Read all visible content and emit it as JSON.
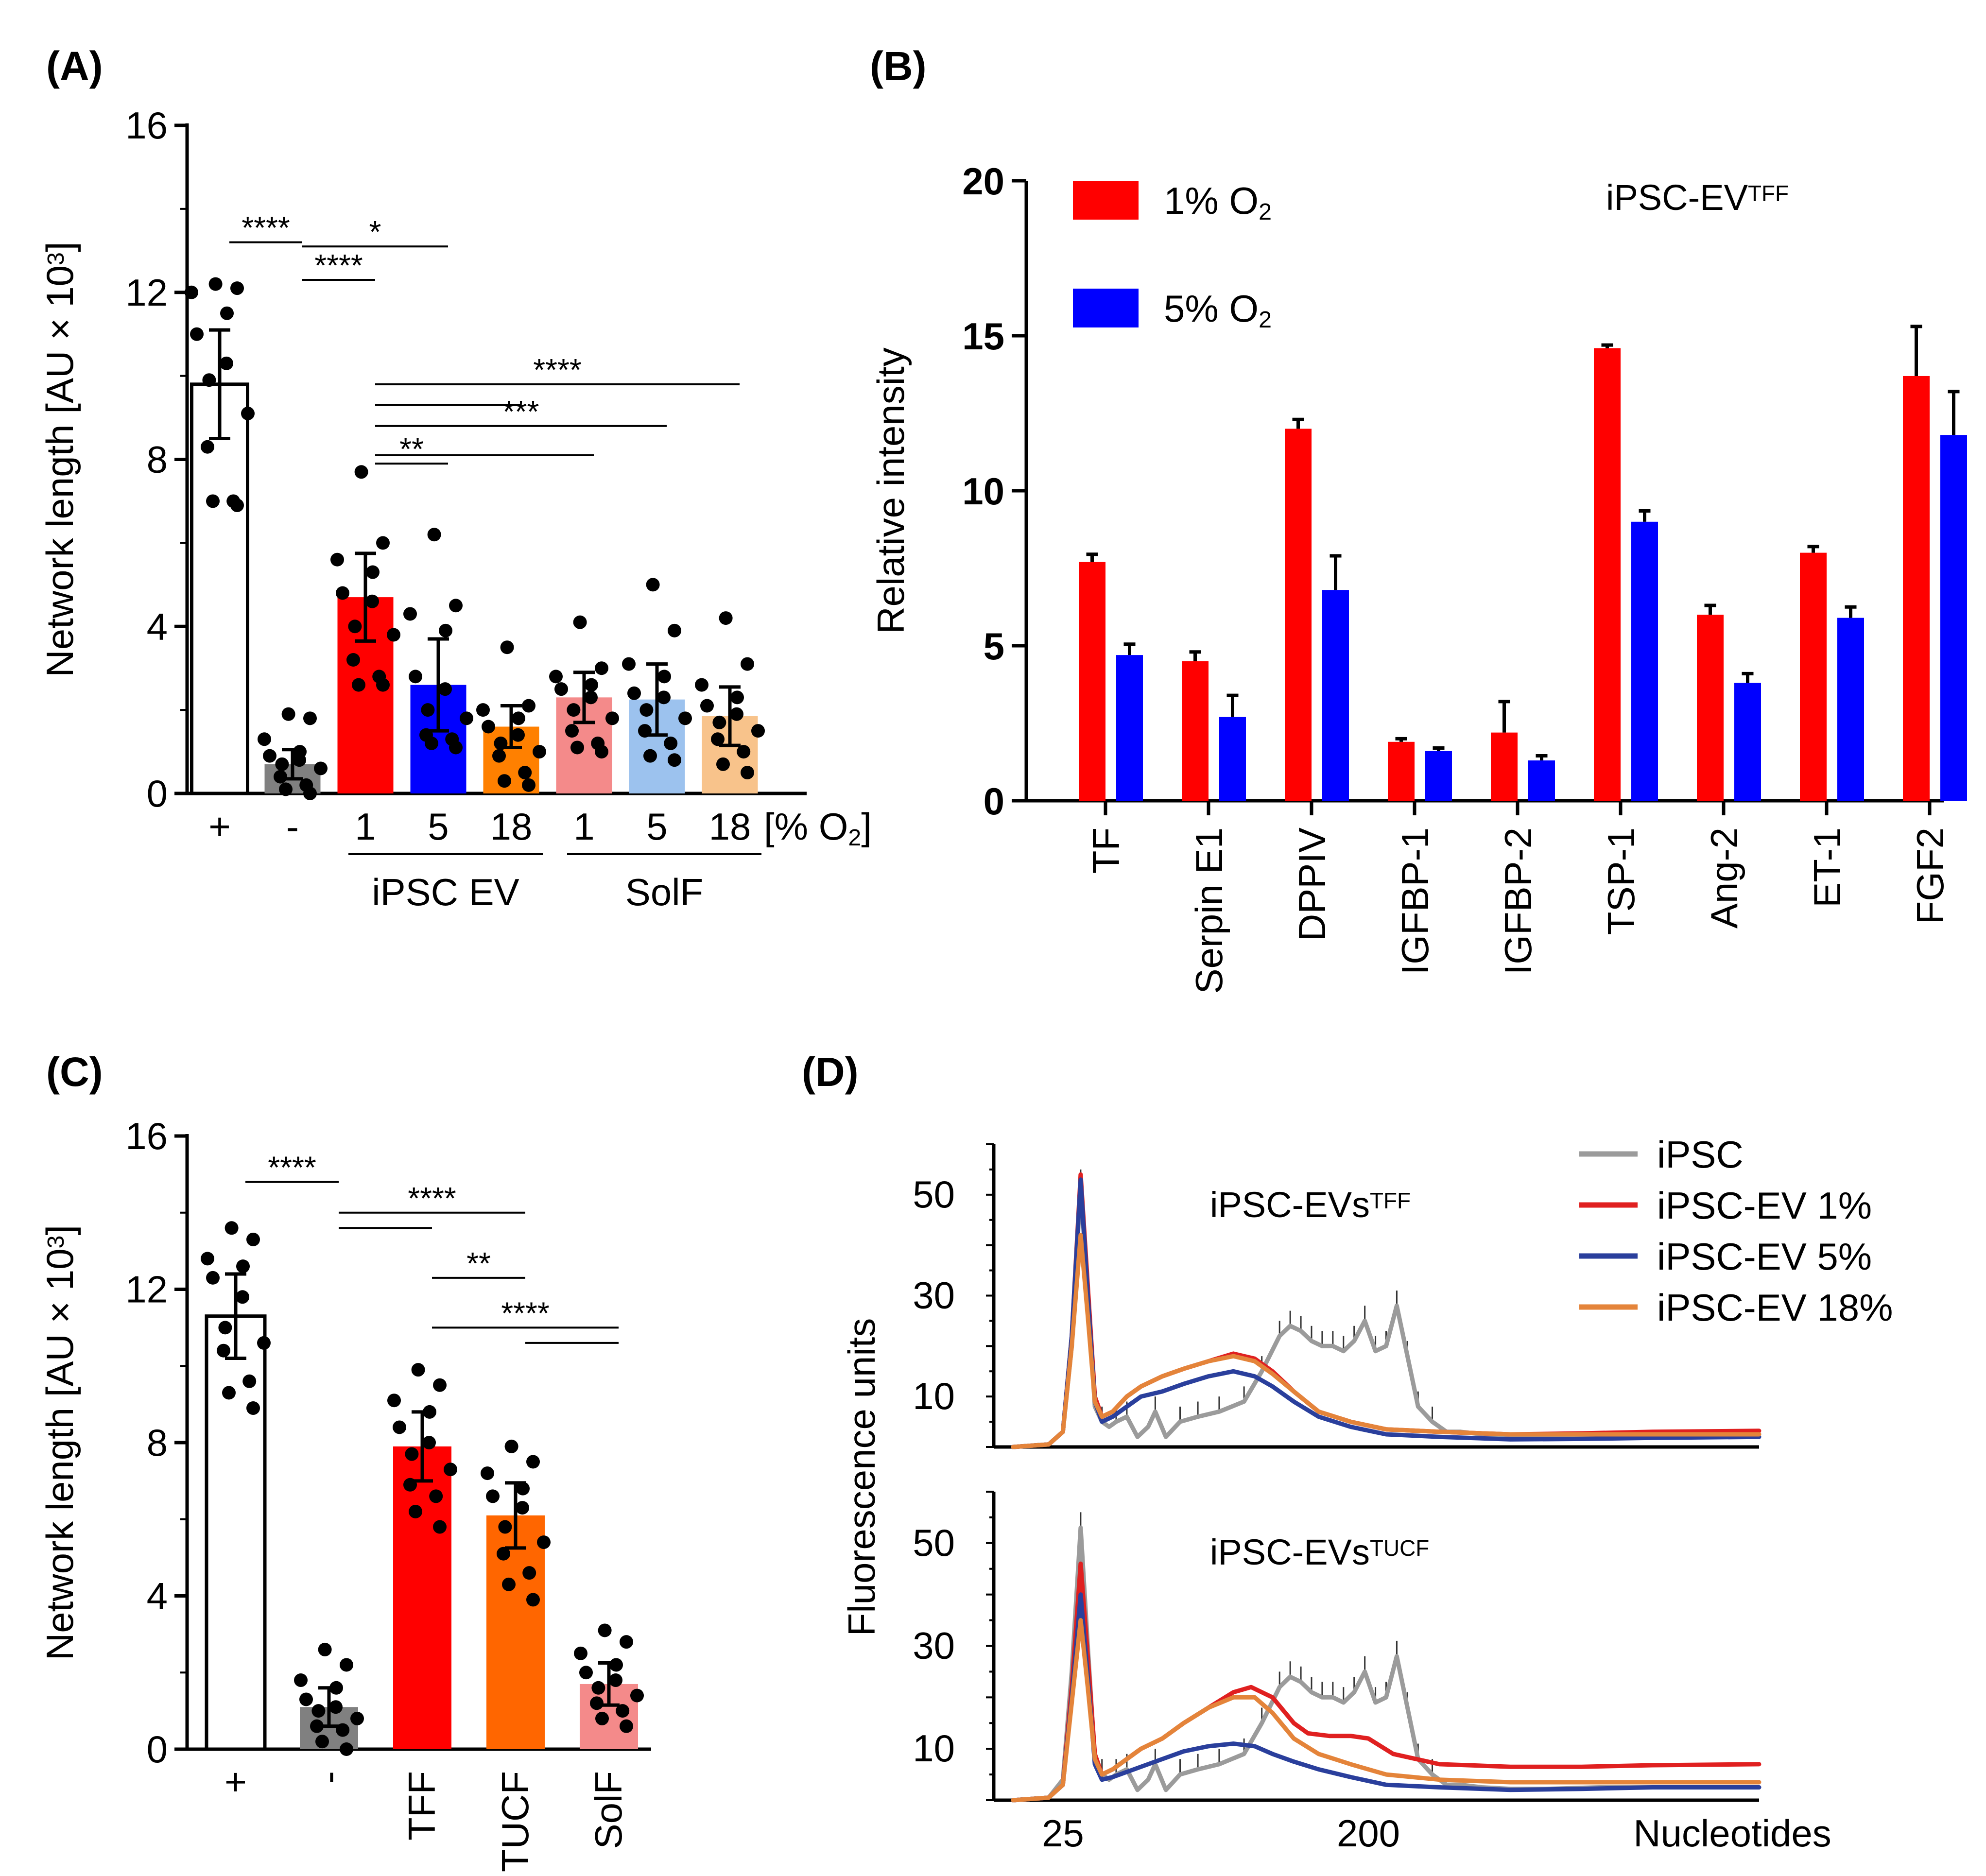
{
  "colors": {
    "red": "#ff0000",
    "blue": "#0000ff",
    "orange": "#ff8000",
    "dark_orange": "#ff6600",
    "light_red": "#f48a8a",
    "light_blue": "#9cc2ee",
    "light_orange": "#f8c38b",
    "gray": "#808080",
    "dark_gray": "#4a4a4a",
    "trace_gray": "#9b9b9b",
    "trace_red": "#e02020",
    "trace_blue": "#2a3f9c",
    "trace_orange": "#e4843a"
  },
  "chart_data": [
    {
      "id": "A",
      "panel_label": "(A)",
      "type": "bar",
      "ylabel": "Network length [AU × 10³]",
      "ylim": [
        0,
        16
      ],
      "yticks": [
        "0",
        "4",
        "8",
        "12",
        "16"
      ],
      "categories": [
        "+",
        "-",
        "1",
        "5",
        "18",
        "1",
        "5",
        "18"
      ],
      "units_label": "[% O₂]",
      "groups": [
        {
          "label": "iPSC EV",
          "from": 2,
          "to": 4
        },
        {
          "label": "SolF",
          "from": 5,
          "to": 7
        }
      ],
      "values": [
        9.8,
        0.7,
        4.7,
        2.6,
        1.6,
        2.3,
        2.25,
        1.85
      ],
      "errors": [
        1.3,
        0.35,
        1.05,
        1.1,
        0.5,
        0.6,
        0.85,
        0.7
      ],
      "fills": [
        "white",
        "gray",
        "red",
        "blue",
        "orange",
        "light_red",
        "light_blue",
        "light_orange"
      ],
      "points": [
        [
          12.2,
          12.1,
          12.0,
          11.5,
          11.0,
          10.3,
          9.9,
          9.1,
          8.3,
          7.0,
          7.0,
          6.9
        ],
        [
          1.9,
          1.8,
          1.3,
          1.0,
          0.9,
          0.8,
          0.7,
          0.6,
          0.4,
          0.2,
          0.1,
          0.0
        ],
        [
          7.7,
          6.0,
          5.6,
          5.3,
          4.8,
          4.6,
          4.0,
          3.8,
          3.2,
          2.8,
          2.6,
          2.6
        ],
        [
          6.2,
          4.5,
          4.3,
          3.9,
          2.8,
          2.5,
          2.0,
          1.8,
          1.4,
          1.3,
          1.2,
          1.1
        ],
        [
          3.5,
          2.1,
          2.0,
          1.8,
          1.6,
          1.4,
          1.2,
          1.0,
          0.9,
          0.5,
          0.3,
          0.2
        ],
        [
          4.1,
          3.0,
          2.8,
          2.6,
          2.5,
          2.3,
          2.0,
          1.8,
          1.5,
          1.2,
          1.1,
          1.0
        ],
        [
          5.0,
          3.9,
          3.1,
          2.8,
          2.4,
          2.3,
          2.0,
          1.8,
          1.5,
          1.2,
          0.9,
          0.8
        ],
        [
          4.2,
          3.1,
          2.6,
          2.3,
          2.1,
          1.9,
          1.7,
          1.5,
          1.3,
          1.0,
          0.7,
          0.5
        ]
      ],
      "significance": [
        {
          "from": 0,
          "to": 1,
          "label": "****",
          "y": 13.2
        },
        {
          "from": 1,
          "to": 3,
          "label": "*",
          "y": 13.1
        },
        {
          "from": 1,
          "to": 2,
          "label": "****",
          "y": 12.3
        },
        {
          "from": 2,
          "to": 7,
          "label": "****",
          "y": 9.8
        },
        {
          "from": 2,
          "to": 4,
          "label": "",
          "y": 9.3
        },
        {
          "from": 2,
          "to": 6,
          "label": "***",
          "y": 8.8
        },
        {
          "from": 2,
          "to": 5,
          "label": "",
          "y": 8.1
        },
        {
          "from": 2,
          "to": 3,
          "label": "**",
          "y": 7.9
        }
      ]
    },
    {
      "id": "B",
      "panel_label": "(B)",
      "type": "bar",
      "ylabel": "Relative intensity",
      "ylim": [
        0,
        20
      ],
      "yticks": [
        "0",
        "5",
        "10",
        "15",
        "20"
      ],
      "title": "iPSC-EV",
      "title_sup": "TFF",
      "categories": [
        "TF",
        "Serpin E1",
        "DPPIV",
        "IGFBP-1",
        "IGFBP-2",
        "TSP-1",
        "Ang-2",
        "ET-1",
        "FGF2"
      ],
      "series": [
        {
          "name": "1% O",
          "sub": "2",
          "color": "red",
          "values": [
            7.7,
            4.5,
            12.0,
            1.9,
            2.2,
            14.6,
            6.0,
            8.0,
            13.7
          ],
          "errors": [
            0.25,
            0.3,
            0.3,
            0.1,
            1.0,
            0.1,
            0.3,
            0.2,
            1.6
          ]
        },
        {
          "name": "5% O",
          "sub": "2",
          "color": "blue",
          "values": [
            4.7,
            2.7,
            6.8,
            1.6,
            1.3,
            9.0,
            3.8,
            5.9,
            11.8
          ],
          "errors": [
            0.35,
            0.7,
            1.1,
            0.1,
            0.15,
            0.35,
            0.3,
            0.35,
            1.4
          ]
        }
      ]
    },
    {
      "id": "C",
      "panel_label": "(C)",
      "type": "bar",
      "ylabel": "Network length  [AU × 10³]",
      "ylim": [
        0,
        16
      ],
      "yticks": [
        "0",
        "4",
        "8",
        "12",
        "16"
      ],
      "categories": [
        "+",
        "-",
        "TFF",
        "TUCF",
        "SolF"
      ],
      "values": [
        11.3,
        1.1,
        7.9,
        6.1,
        1.7
      ],
      "errors": [
        1.1,
        0.5,
        0.9,
        0.85,
        0.55
      ],
      "fills": [
        "white",
        "gray",
        "red",
        "dark_orange",
        "light_red"
      ],
      "points": [
        [
          13.6,
          13.3,
          12.8,
          12.6,
          12.3,
          11.8,
          11.0,
          10.6,
          10.4,
          9.6,
          9.3,
          8.9
        ],
        [
          2.6,
          2.2,
          1.8,
          1.6,
          1.3,
          1.1,
          1.0,
          0.8,
          0.6,
          0.5,
          0.2,
          0.0
        ],
        [
          9.9,
          9.5,
          9.1,
          8.8,
          8.4,
          8.0,
          7.7,
          7.3,
          6.9,
          6.6,
          6.2,
          5.8
        ],
        [
          7.9,
          7.5,
          7.2,
          6.8,
          6.6,
          6.3,
          5.8,
          5.4,
          5.1,
          4.6,
          4.3,
          3.9
        ],
        [
          3.1,
          2.8,
          2.5,
          2.2,
          2.0,
          1.8,
          1.6,
          1.4,
          1.2,
          1.0,
          0.8,
          0.6
        ]
      ],
      "significance": [
        {
          "from": 0,
          "to": 1,
          "label": "****",
          "y": 14.8
        },
        {
          "from": 1,
          "to": 3,
          "label": "****",
          "y": 14.0
        },
        {
          "from": 1,
          "to": 2,
          "label": "",
          "y": 13.6
        },
        {
          "from": 2,
          "to": 3,
          "label": "**",
          "y": 12.3
        },
        {
          "from": 2,
          "to": 4,
          "label": "****",
          "y": 11.0
        },
        {
          "from": 3,
          "to": 4,
          "label": "",
          "y": 10.6
        }
      ]
    },
    {
      "id": "D",
      "panel_label": "(D)",
      "type": "line",
      "ylabel": "Fluorescence units",
      "xlabel": "Nucleotides",
      "xticks": [
        "25",
        "200"
      ],
      "yticks": [
        "10",
        "30",
        "50"
      ],
      "ylim": [
        0,
        60
      ],
      "legend": [
        "iPSC",
        "iPSC-EV 1%",
        "iPSC-EV 5%",
        "iPSC-EV 18%"
      ],
      "subplots": [
        {
          "title": "iPSC-EVs",
          "title_sup": "TFF",
          "series": [
            {
              "name": "iPSC",
              "color": "trace_gray",
              "x": [
                0,
                20,
                28,
                33,
                38,
                42,
                46,
                50,
                54,
                58,
                64,
                70,
                76,
                80,
                86,
                94,
                104,
                116,
                130,
                140,
                150,
                156,
                162,
                168,
                174,
                180,
                186,
                192,
                198,
                204,
                210,
                216,
                222,
                228,
                236,
                244,
                252,
                264,
                280,
                300,
                330,
                360,
                400,
                420
              ],
              "y": [
                0,
                0.5,
                3,
                20,
                52,
                30,
                8,
                5,
                4,
                5,
                6,
                2,
                4,
                7,
                2,
                5,
                6,
                7,
                9,
                15,
                22,
                24,
                23,
                21,
                20,
                20,
                19,
                21,
                25,
                19,
                20,
                28,
                18,
                8,
                5,
                3,
                3,
                2.5,
                2.2,
                2.2,
                2.5,
                2.5,
                2.5,
                2.5
              ]
            },
            {
              "name": "iPSC-EV 1%",
              "color": "trace_red",
              "x": [
                0,
                20,
                28,
                33,
                38,
                42,
                46,
                50,
                56,
                64,
                72,
                84,
                96,
                110,
                124,
                136,
                146,
                158,
                172,
                190,
                210,
                240,
                280,
                320,
                360,
                420
              ],
              "y": [
                0,
                0.5,
                3,
                22,
                54,
                32,
                10,
                6,
                7,
                10,
                12,
                14,
                15.5,
                17,
                18.5,
                17.5,
                15,
                11,
                7,
                5,
                3.5,
                3,
                2.5,
                2.7,
                3,
                3.2
              ]
            },
            {
              "name": "iPSC-EV 5%",
              "color": "trace_blue",
              "x": [
                0,
                20,
                28,
                33,
                38,
                42,
                46,
                50,
                56,
                64,
                72,
                84,
                96,
                110,
                124,
                136,
                146,
                158,
                172,
                190,
                210,
                240,
                280,
                320,
                360,
                420
              ],
              "y": [
                0,
                0.5,
                3,
                22,
                53,
                30,
                9,
                5,
                6,
                8,
                10,
                11,
                12.5,
                14,
                15,
                14,
                12,
                9,
                6,
                4,
                2.5,
                2,
                1.5,
                1.6,
                1.8,
                2
              ]
            },
            {
              "name": "iPSC-EV 18%",
              "color": "trace_orange",
              "x": [
                0,
                20,
                28,
                33,
                38,
                42,
                46,
                50,
                56,
                64,
                72,
                84,
                96,
                110,
                124,
                136,
                146,
                158,
                172,
                190,
                210,
                240,
                280,
                320,
                360,
                420
              ],
              "y": [
                0,
                0.5,
                3,
                20,
                42,
                26,
                9,
                6,
                7,
                10,
                12,
                14,
                15.5,
                17,
                18,
                17,
                14.5,
                11,
                7,
                5,
                3.5,
                3,
                2.5,
                2.5,
                2.5,
                2.5
              ]
            }
          ]
        },
        {
          "title": "iPSC-EVs",
          "title_sup": "TUCF",
          "series": [
            {
              "name": "iPSC",
              "color": "trace_gray",
              "x": [
                0,
                20,
                28,
                33,
                38,
                42,
                46,
                50,
                54,
                58,
                64,
                70,
                76,
                80,
                86,
                94,
                104,
                116,
                130,
                140,
                150,
                156,
                162,
                168,
                174,
                180,
                186,
                192,
                198,
                204,
                210,
                216,
                222,
                228,
                236,
                244,
                252,
                264,
                280,
                300,
                330,
                360,
                400,
                420
              ],
              "y": [
                0,
                0.5,
                4,
                25,
                53,
                30,
                8,
                5,
                4,
                5,
                6,
                2,
                4,
                7,
                2,
                5,
                6,
                7,
                9,
                15,
                22,
                24,
                23,
                21,
                20,
                20,
                19,
                21,
                25,
                19,
                20,
                28,
                18,
                8,
                5,
                3,
                3,
                2.5,
                2.2,
                2.2,
                2.5,
                2.5,
                2.5,
                2.5
              ]
            },
            {
              "name": "iPSC-EV 1%",
              "color": "trace_red",
              "x": [
                0,
                20,
                28,
                33,
                38,
                42,
                46,
                50,
                56,
                64,
                72,
                84,
                96,
                110,
                124,
                134,
                146,
                158,
                166,
                178,
                190,
                200,
                214,
                240,
                280,
                320,
                360,
                420
              ],
              "y": [
                0,
                0.5,
                3,
                22,
                46,
                28,
                9,
                5,
                6,
                8,
                10,
                12,
                15,
                18,
                21,
                22,
                20,
                15,
                13,
                12.5,
                12.5,
                12,
                9,
                7,
                6.5,
                6.5,
                6.8,
                7
              ]
            },
            {
              "name": "iPSC-EV 5%",
              "color": "trace_blue",
              "x": [
                0,
                20,
                28,
                33,
                38,
                42,
                46,
                50,
                56,
                64,
                72,
                84,
                96,
                110,
                124,
                136,
                146,
                158,
                172,
                190,
                210,
                240,
                280,
                320,
                360,
                420
              ],
              "y": [
                0,
                0.5,
                3,
                20,
                40,
                24,
                7,
                4,
                4.5,
                5.5,
                6.5,
                8,
                9.5,
                10.5,
                11,
                10.5,
                9,
                7.5,
                6,
                4.5,
                3,
                2.5,
                2,
                2.2,
                2.5,
                2.5
              ]
            },
            {
              "name": "iPSC-EV 18%",
              "color": "trace_orange",
              "x": [
                0,
                20,
                28,
                33,
                38,
                42,
                46,
                50,
                56,
                64,
                72,
                84,
                96,
                110,
                124,
                136,
                146,
                158,
                172,
                190,
                210,
                240,
                280,
                320,
                360,
                420
              ],
              "y": [
                0,
                0.5,
                3,
                19,
                35,
                22,
                8,
                5,
                6,
                8,
                10,
                12,
                15,
                18,
                20,
                20,
                17,
                12,
                9,
                7,
                5,
                4,
                3.5,
                3.5,
                3.5,
                3.5
              ]
            }
          ]
        }
      ]
    }
  ]
}
